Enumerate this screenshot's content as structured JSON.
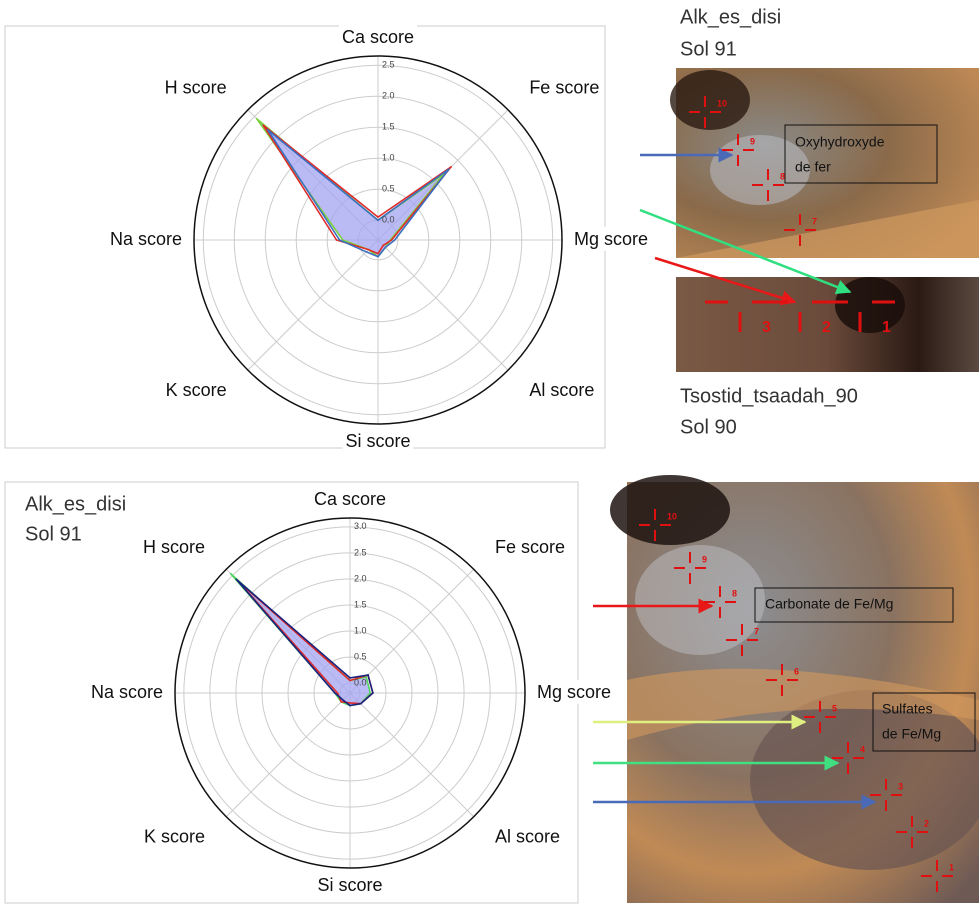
{
  "chart_data": [
    {
      "type": "radar",
      "categories": [
        "Ca score",
        "Fe score",
        "Mg score",
        "Al score",
        "Si score",
        "K score",
        "Na score",
        "H score"
      ],
      "rlim": [
        -0.32,
        2.65
      ],
      "rticks": [
        {
          "value": 0,
          "label": "0.0"
        },
        0.5,
        {
          "value": 1,
          "label": "1.0"
        },
        1.5,
        {
          "value": 2,
          "label": "2.0"
        },
        2.5
      ],
      "grid": true,
      "fill_color": "#a3a3f0",
      "series": [
        {
          "color": "#7ad13c",
          "values": [
            0.0,
            1.2,
            -0.12,
            -0.15,
            -0.05,
            -0.1,
            0.25,
            2.45
          ]
        },
        {
          "color": "#e02a2a",
          "values": [
            0.05,
            1.35,
            -0.1,
            -0.2,
            -0.1,
            -0.1,
            0.35,
            2.3
          ]
        },
        {
          "color": "#3a6fc0",
          "values": [
            0.0,
            1.3,
            -0.05,
            -0.15,
            -0.05,
            -0.05,
            0.3,
            2.2
          ]
        }
      ]
    },
    {
      "type": "radar",
      "categories": [
        "Ca score",
        "Fe score",
        "Mg score",
        "Al score",
        "Si score",
        "K score",
        "Na score",
        "H score"
      ],
      "rlim": [
        -0.19,
        3.17
      ],
      "rticks": [
        {
          "value": 0,
          "label": "0.0"
        },
        0.5,
        {
          "value": 1,
          "label": "1.0"
        },
        1.5,
        {
          "value": 2,
          "label": "2.0"
        },
        2.5,
        {
          "value": 3,
          "label": "3.0"
        }
      ],
      "grid": true,
      "fill_color": "#a3a3f0",
      "series": [
        {
          "color": "#4fd65a",
          "values": [
            0.05,
            0.25,
            0.2,
            0.1,
            0.05,
            0.05,
            0.1,
            3.05
          ]
        },
        {
          "color": "#e02a2a",
          "values": [
            0.05,
            0.3,
            0.25,
            0.1,
            0.0,
            0.05,
            0.05,
            2.85
          ]
        },
        {
          "color": "#1a237e",
          "values": [
            0.1,
            0.3,
            0.25,
            0.1,
            0.05,
            0.0,
            0.1,
            2.9
          ]
        }
      ]
    }
  ],
  "top_images": {
    "site_a": {
      "name": "Alk_es_disi",
      "sol": "Sol 91"
    },
    "callout": [
      "Oxyhydroxyde",
      "de fer"
    ],
    "markers": [
      10,
      9,
      8,
      7
    ],
    "site_b": {
      "name": "Tsostid_tsaadah_90",
      "sol": "Sol 90"
    },
    "strip_markers": [
      3,
      2,
      1
    ]
  },
  "bottom_image": {
    "site": {
      "name": "Alk_es_disi",
      "sol": "Sol 91"
    },
    "callout_carbonate": [
      "Carbonate de Fe/Mg"
    ],
    "callout_sulfates": [
      "Sulfates",
      "de Fe/Mg"
    ],
    "markers": [
      10,
      9,
      8,
      7,
      6,
      5,
      4,
      3,
      2,
      1
    ]
  }
}
